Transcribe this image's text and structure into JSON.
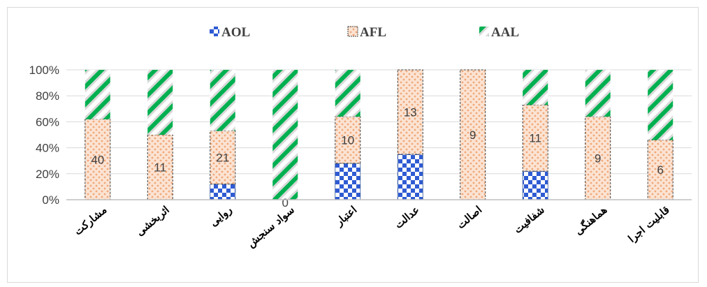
{
  "chart_data": {
    "type": "bar",
    "stacked": "100%",
    "categories": [
      "مشارکت",
      "اثربخشی",
      "روایی",
      "سواد سنجش",
      "اعتبار",
      "عدالت",
      "اصالت",
      "شفافیت",
      "هماهنگی",
      "قابلیت اجرا"
    ],
    "series": [
      {
        "name": "AOL",
        "values": [
          0,
          0,
          12,
          0,
          28,
          35,
          0,
          22,
          0,
          0
        ],
        "color": "#4472c4",
        "pattern": "checker"
      },
      {
        "name": "AFL",
        "values": [
          62,
          50,
          41,
          0,
          36,
          65,
          100,
          51,
          64,
          46
        ],
        "color": "#f4b183",
        "pattern": "dots",
        "labels": [
          "40",
          "11",
          "21",
          "0",
          "10",
          "13",
          "9",
          "11",
          "9",
          "6"
        ]
      },
      {
        "name": "AAL",
        "values": [
          38,
          50,
          47,
          100,
          36,
          0,
          0,
          27,
          36,
          54
        ],
        "color": "#00b050",
        "pattern": "diagonal-stripes"
      }
    ],
    "y_ticks": [
      "0%",
      "20%",
      "40%",
      "60%",
      "80%",
      "100%"
    ],
    "ylim": [
      0,
      100
    ],
    "grid": true,
    "legend": "top"
  }
}
